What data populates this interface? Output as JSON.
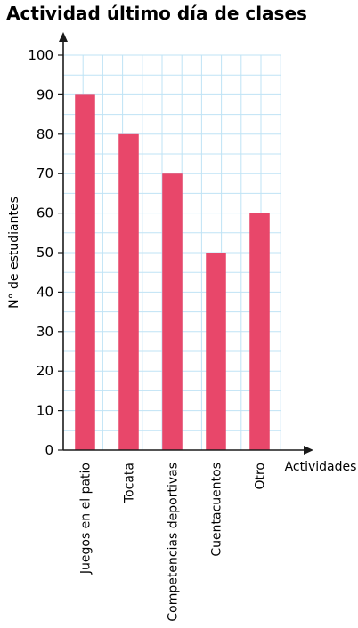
{
  "chart_data": {
    "type": "bar",
    "title": "Actividad último día de clases",
    "xlabel": "Actividades",
    "ylabel": "N° de estudiantes",
    "categories": [
      "Juegos en el patio",
      "Tocata",
      "Competencias deportivas",
      "Cuentacuentos",
      "Otro"
    ],
    "values": [
      90,
      80,
      70,
      50,
      60
    ],
    "ylim": [
      0,
      100
    ],
    "yticks": [
      0,
      10,
      20,
      30,
      40,
      50,
      60,
      70,
      80,
      90,
      100
    ],
    "grid": true,
    "bar_color": "#e8476a",
    "grid_color": "#bfe3f5"
  }
}
